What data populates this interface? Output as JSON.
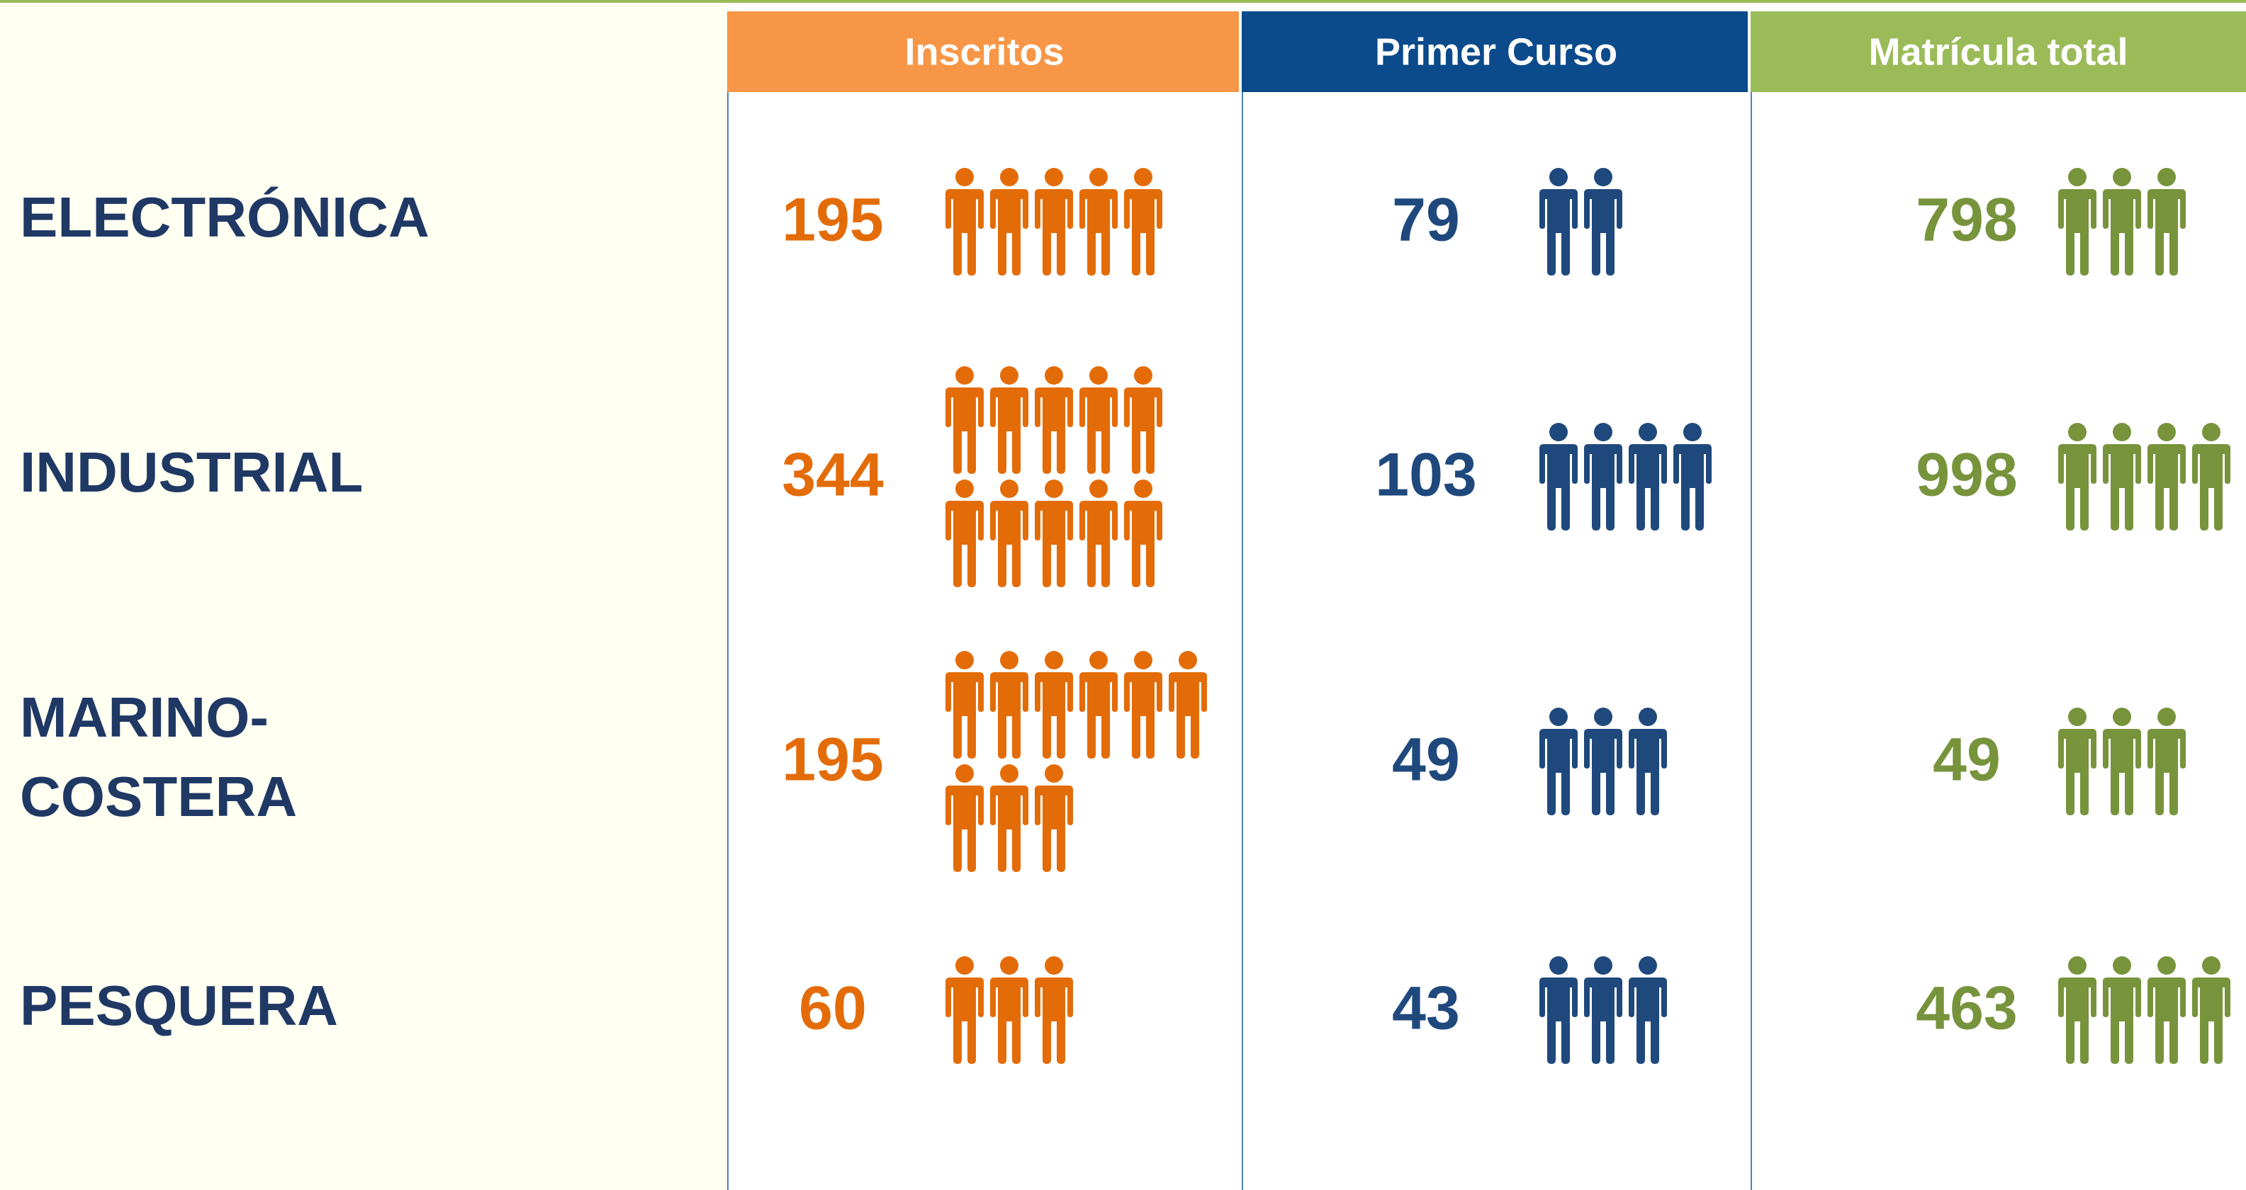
{
  "columns": [
    {
      "title": "Inscritos",
      "color": "#f79646",
      "text_color": "#e36c09"
    },
    {
      "title": "Primer Curso",
      "color": "#0b4a8b",
      "text_color": "#1f497d"
    },
    {
      "title": "Matrícula total",
      "color": "#9bbb59",
      "text_color": "#77933c"
    }
  ],
  "rows": [
    {
      "label": [
        "ELECTRÓNICA"
      ],
      "cells": [
        {
          "value": 195,
          "icons": [
            5
          ]
        },
        {
          "value": 79,
          "icons": [
            2
          ]
        },
        {
          "value": 798,
          "icons": [
            3
          ]
        }
      ]
    },
    {
      "label": [
        "INDUSTRIAL"
      ],
      "cells": [
        {
          "value": 344,
          "icons": [
            5,
            5
          ]
        },
        {
          "value": 103,
          "icons": [
            4
          ]
        },
        {
          "value": 998,
          "icons": [
            4
          ]
        }
      ]
    },
    {
      "label": [
        "MARINO-",
        "COSTERA"
      ],
      "cells": [
        {
          "value": 195,
          "icons": [
            6,
            3
          ]
        },
        {
          "value": 49,
          "icons": [
            3
          ]
        },
        {
          "value": 49,
          "icons": [
            3
          ]
        }
      ]
    },
    {
      "label": [
        "PESQUERA"
      ],
      "cells": [
        {
          "value": 60,
          "icons": [
            3
          ]
        },
        {
          "value": 43,
          "icons": [
            3
          ]
        },
        {
          "value": 463,
          "icons": [
            4
          ]
        }
      ]
    }
  ]
}
